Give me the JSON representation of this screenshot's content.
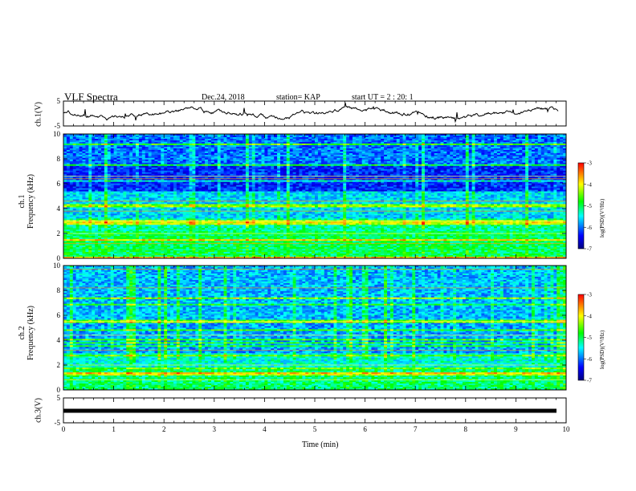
{
  "header": {
    "title": "VLF Spectra",
    "date": "Dec.24, 2018",
    "station": "station= KAP",
    "start": "start  UT =   2 : 20: 1"
  },
  "panels": {
    "ch1_wave_label": "ch.1(V)",
    "ch1_spec_label_top": "ch.1",
    "ch1_spec_label": "Frequency (kHz)",
    "ch2_spec_label_top": "ch.2",
    "ch2_spec_label": "Frequency (kHz)",
    "ch3_wave_label": "ch.3(V)",
    "colorbar_label": "log(PSD)(V²/Hz)"
  },
  "chart_data": [
    {
      "type": "line",
      "panel": "ch1-waveform",
      "ylabel": "ch.1(V)",
      "ylim": [
        -5,
        5
      ],
      "yticks": [
        "5",
        "-5"
      ],
      "xlim": [
        0,
        10
      ]
    },
    {
      "type": "heatmap",
      "panel": "ch1-spectrogram",
      "ylabel": "Frequency (kHz)",
      "ylim": [
        0,
        10
      ],
      "yticks": [
        "0",
        "2",
        "4",
        "6",
        "8",
        "10"
      ],
      "xlim": [
        0,
        10
      ],
      "colorbar": {
        "range": [
          -7,
          -3
        ],
        "ticks": [
          "-3",
          "-4",
          "-5",
          "-6",
          "-7"
        ],
        "label": "log(PSD)(V²/Hz)"
      }
    },
    {
      "type": "heatmap",
      "panel": "ch2-spectrogram",
      "ylabel": "Frequency (kHz)",
      "ylim": [
        0,
        10
      ],
      "yticks": [
        "0",
        "2",
        "4",
        "6",
        "8",
        "10"
      ],
      "xlim": [
        0,
        10
      ],
      "colorbar": {
        "range": [
          -7,
          -3
        ],
        "ticks": [
          "-3",
          "-4",
          "-5",
          "-6",
          "-7"
        ],
        "label": "log(PSD)(V²/Hz)"
      }
    },
    {
      "type": "line",
      "panel": "ch3-waveform",
      "ylabel": "ch.3(V)",
      "ylim": [
        -5,
        5
      ],
      "yticks": [
        "5",
        "-5"
      ],
      "xlim": [
        0,
        10
      ],
      "xlabel": "Time (min)",
      "xticks": [
        "0",
        "1",
        "2",
        "3",
        "4",
        "5",
        "6",
        "7",
        "8",
        "9",
        "10"
      ]
    }
  ],
  "colors": {
    "low": "#00007f",
    "mid_low": "#0000ff",
    "mid": "#00ffff",
    "mid_high": "#00ff00",
    "high": "#ffff00",
    "peak": "#ff0000"
  }
}
